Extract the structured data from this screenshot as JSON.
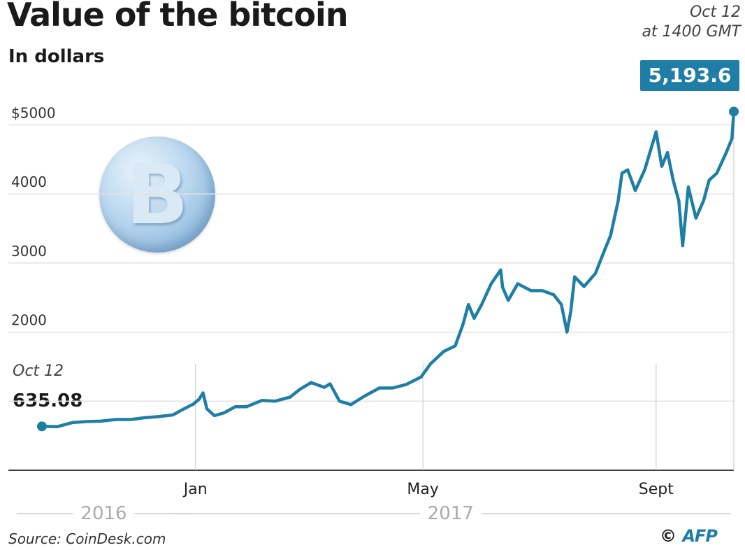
{
  "chart_data": {
    "type": "line",
    "title": "Value of the bitcoin",
    "subtitle": "In dollars",
    "ylabel": "",
    "xlabel": "",
    "ylim": [
      0,
      5000
    ],
    "y_ticks": [
      {
        "value": 5000,
        "label": "$5000"
      },
      {
        "value": 4000,
        "label": "4000"
      },
      {
        "value": 3000,
        "label": "3000"
      },
      {
        "value": 2000,
        "label": "2000"
      },
      {
        "value": 1000,
        "label": ""
      }
    ],
    "x_ticks": [
      {
        "date": "2017-01-01",
        "label": "Jan"
      },
      {
        "date": "2017-05-01",
        "label": "May"
      },
      {
        "date": "2017-09-01",
        "label": "Sept"
      }
    ],
    "year_labels": [
      {
        "label": "2016",
        "start": "2016-10-12",
        "end": "2016-12-31"
      },
      {
        "label": "2017",
        "start": "2017-01-01",
        "end": "2017-10-12"
      }
    ],
    "grid": true,
    "series": [
      {
        "color": "#1f7ea6",
        "points": [
          [
            "2016-10-12",
            635
          ],
          [
            "2016-10-20",
            630
          ],
          [
            "2016-10-28",
            690
          ],
          [
            "2016-11-05",
            705
          ],
          [
            "2016-11-12",
            710
          ],
          [
            "2016-11-20",
            735
          ],
          [
            "2016-11-28",
            735
          ],
          [
            "2016-12-05",
            760
          ],
          [
            "2016-12-12",
            775
          ],
          [
            "2016-12-20",
            800
          ],
          [
            "2016-12-26",
            890
          ],
          [
            "2016-12-31",
            960
          ],
          [
            "2017-01-03",
            1030
          ],
          [
            "2017-01-05",
            1120
          ],
          [
            "2017-01-07",
            890
          ],
          [
            "2017-01-11",
            790
          ],
          [
            "2017-01-16",
            830
          ],
          [
            "2017-01-22",
            920
          ],
          [
            "2017-01-28",
            920
          ],
          [
            "2017-02-05",
            1010
          ],
          [
            "2017-02-12",
            1000
          ],
          [
            "2017-02-20",
            1060
          ],
          [
            "2017-02-25",
            1170
          ],
          [
            "2017-03-03",
            1270
          ],
          [
            "2017-03-10",
            1200
          ],
          [
            "2017-03-13",
            1250
          ],
          [
            "2017-03-18",
            1000
          ],
          [
            "2017-03-24",
            950
          ],
          [
            "2017-03-31",
            1070
          ],
          [
            "2017-04-08",
            1190
          ],
          [
            "2017-04-15",
            1190
          ],
          [
            "2017-04-22",
            1240
          ],
          [
            "2017-04-30",
            1350
          ],
          [
            "2017-05-05",
            1540
          ],
          [
            "2017-05-12",
            1720
          ],
          [
            "2017-05-18",
            1800
          ],
          [
            "2017-05-22",
            2100
          ],
          [
            "2017-05-25",
            2400
          ],
          [
            "2017-05-28",
            2200
          ],
          [
            "2017-06-01",
            2400
          ],
          [
            "2017-06-06",
            2700
          ],
          [
            "2017-06-11",
            2900
          ],
          [
            "2017-06-12",
            2650
          ],
          [
            "2017-06-15",
            2460
          ],
          [
            "2017-06-20",
            2700
          ],
          [
            "2017-06-27",
            2600
          ],
          [
            "2017-07-03",
            2600
          ],
          [
            "2017-07-09",
            2540
          ],
          [
            "2017-07-13",
            2400
          ],
          [
            "2017-07-16",
            2000
          ],
          [
            "2017-07-18",
            2300
          ],
          [
            "2017-07-20",
            2800
          ],
          [
            "2017-07-25",
            2660
          ],
          [
            "2017-07-31",
            2850
          ],
          [
            "2017-08-05",
            3200
          ],
          [
            "2017-08-08",
            3400
          ],
          [
            "2017-08-12",
            3900
          ],
          [
            "2017-08-14",
            4300
          ],
          [
            "2017-08-17",
            4350
          ],
          [
            "2017-08-21",
            4050
          ],
          [
            "2017-08-26",
            4350
          ],
          [
            "2017-09-01",
            4900
          ],
          [
            "2017-09-04",
            4400
          ],
          [
            "2017-09-07",
            4600
          ],
          [
            "2017-09-10",
            4200
          ],
          [
            "2017-09-13",
            3900
          ],
          [
            "2017-09-15",
            3250
          ],
          [
            "2017-09-18",
            4100
          ],
          [
            "2017-09-22",
            3650
          ],
          [
            "2017-09-26",
            3900
          ],
          [
            "2017-09-29",
            4200
          ],
          [
            "2017-10-03",
            4300
          ],
          [
            "2017-10-08",
            4600
          ],
          [
            "2017-10-11",
            4800
          ],
          [
            "2017-10-12",
            5193.6
          ]
        ]
      }
    ],
    "annotations": {
      "start": {
        "date_label": "Oct 12",
        "value_label": "635.08"
      },
      "end": {
        "date_label": "Oct 12",
        "time_label": "at 1400 GMT",
        "value_label": "5,193.6"
      }
    },
    "source": "Source: CoinDesk.com",
    "credit": "AFP"
  }
}
